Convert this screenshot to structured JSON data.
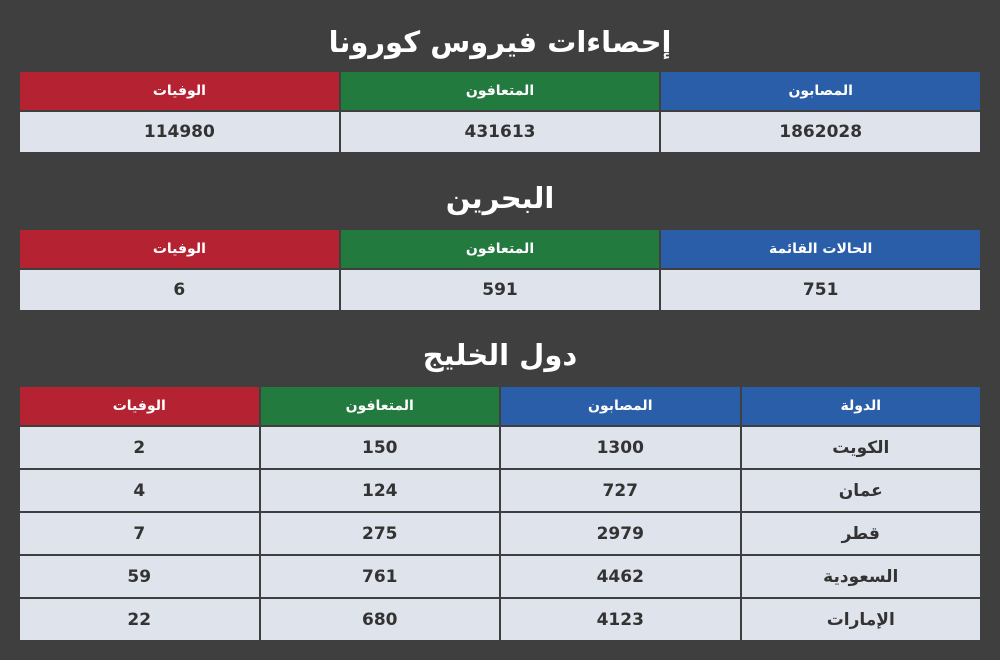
{
  "global": {
    "title": "إحصاءات فيروس كورونا",
    "headers": [
      "المصابون",
      "المتعافون",
      "الوفيات"
    ],
    "values": [
      1862028,
      431613,
      114980
    ]
  },
  "bahrain": {
    "title": "البحرين",
    "headers": [
      "الحالات القائمة",
      "المتعافون",
      "الوفيات"
    ],
    "values": [
      751,
      591,
      6
    ]
  },
  "gulf": {
    "title": "دول الخليج",
    "headers": [
      "الدولة",
      "المصابون",
      "المتعافون",
      "الوفيات"
    ],
    "rows": [
      [
        "الكويت",
        1300,
        150,
        2
      ],
      [
        "عمان",
        727,
        124,
        4
      ],
      [
        "قطر",
        2979,
        275,
        7
      ],
      [
        "السعودية",
        4462,
        761,
        59
      ],
      [
        "الإمارات",
        4123,
        680,
        22
      ]
    ]
  }
}
